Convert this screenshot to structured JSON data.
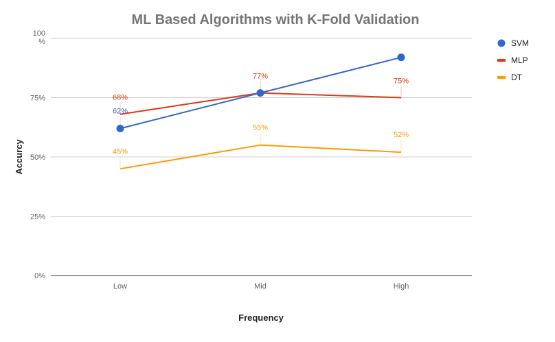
{
  "chart_data": {
    "type": "line",
    "title": "ML Based Algorithms with K-Fold Validation",
    "xlabel": "Frequency",
    "ylabel": "Accurcy",
    "categories": [
      "Low",
      "Mid",
      "High"
    ],
    "ylim": [
      0,
      100
    ],
    "yticks": [
      {
        "value": 100,
        "label": "100 %"
      },
      {
        "value": 75,
        "label": "75%"
      },
      {
        "value": 50,
        "label": "50%"
      },
      {
        "value": 25,
        "label": "25%"
      },
      {
        "value": 0,
        "label": "0%"
      }
    ],
    "grid": true,
    "legend_position": "right",
    "series": [
      {
        "name": "SVM",
        "values": [
          62,
          77,
          92
        ],
        "labels": [
          "62%",
          "",
          ""
        ],
        "color": "#3366cc",
        "markers": true
      },
      {
        "name": "MLP",
        "values": [
          68,
          77,
          75
        ],
        "labels": [
          "68%",
          "77%",
          "75%"
        ],
        "color": "#dc3912",
        "markers": false
      },
      {
        "name": "DT",
        "values": [
          45,
          55,
          52
        ],
        "labels": [
          "45%",
          "55%",
          "52%"
        ],
        "color": "#ff9900",
        "markers": false
      }
    ]
  }
}
